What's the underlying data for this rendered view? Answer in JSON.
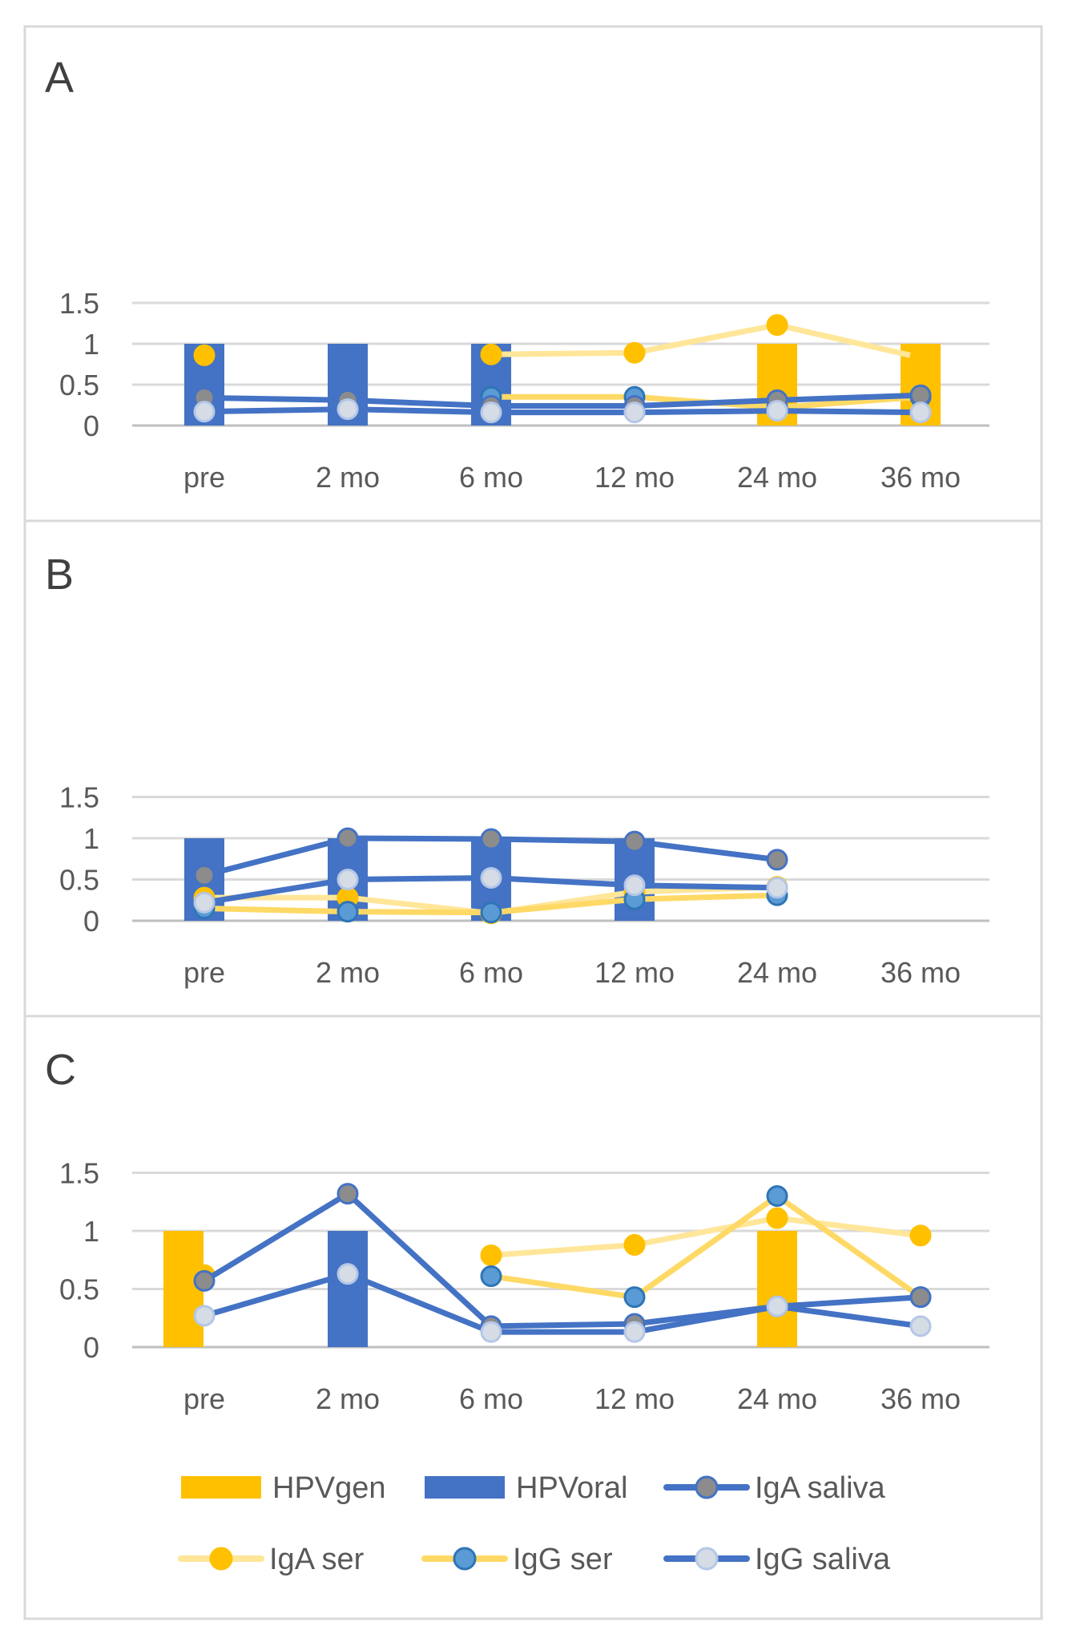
{
  "figure": {
    "legend": [
      {
        "key": "hpv_gen",
        "label": "HPVgen",
        "kind": "bar",
        "color": "#FFC000"
      },
      {
        "key": "hpv_oral",
        "label": "HPVoral",
        "kind": "bar",
        "color": "#4472C4"
      },
      {
        "key": "iga_saliva",
        "label": "IgA saliva",
        "kind": "line",
        "line_color": "#4472C4",
        "marker_fill": "#8C8C8C",
        "marker_stroke": "#4472C4"
      },
      {
        "key": "iga_ser",
        "label": "IgA ser",
        "kind": "line",
        "line_color": "#FFE699",
        "marker_fill": "#FFC000",
        "marker_stroke": "#FFC000"
      },
      {
        "key": "igg_ser",
        "label": "IgG ser",
        "kind": "line",
        "line_color": "#FFD966",
        "marker_fill": "#5B9BD5",
        "marker_stroke": "#2E75B6"
      },
      {
        "key": "igg_saliva",
        "label": "IgG saliva",
        "kind": "line",
        "line_color": "#4472C4",
        "marker_fill": "#D6DCE5",
        "marker_stroke": "#B4C7E7"
      }
    ]
  },
  "chart_data": [
    {
      "panel": "A",
      "type": "bar+line",
      "categories": [
        "pre",
        "2 mo",
        "6 mo",
        "12 mo",
        "24 mo",
        "36 mo"
      ],
      "y_ticks": [
        "1.5",
        "1",
        "0.5",
        "0"
      ],
      "ylim": [
        0,
        1.5
      ],
      "grid": true,
      "bars": {
        "hpv_gen": [
          0,
          0,
          0,
          0,
          1,
          1
        ],
        "hpv_oral": [
          1,
          1,
          1,
          0,
          0,
          0
        ]
      },
      "series": [
        {
          "key": "iga_ser",
          "name": "IgA ser",
          "values": [
            0.86,
            null,
            0.87,
            0.89,
            1.23,
            0.83
          ]
        },
        {
          "key": "igg_ser",
          "name": "IgG ser",
          "values": [
            null,
            null,
            0.35,
            0.35,
            0.22,
            0.35
          ]
        },
        {
          "key": "iga_saliva",
          "name": "IgA saliva",
          "values": [
            0.34,
            0.31,
            0.24,
            0.24,
            0.31,
            0.37
          ]
        },
        {
          "key": "igg_saliva",
          "name": "IgG saliva",
          "values": [
            0.17,
            0.2,
            0.16,
            0.16,
            0.18,
            0.16
          ]
        }
      ]
    },
    {
      "panel": "B",
      "type": "bar+line",
      "categories": [
        "pre",
        "2 mo",
        "6 mo",
        "12 mo",
        "24 mo",
        "36 mo"
      ],
      "y_ticks": [
        "1.5",
        "1",
        "0.5",
        "0"
      ],
      "ylim": [
        0,
        1.5
      ],
      "grid": true,
      "bars": {
        "hpv_gen": [
          0,
          0,
          0,
          0,
          0,
          0
        ],
        "hpv_oral": [
          1,
          1,
          1,
          1,
          0,
          0
        ]
      },
      "series": [
        {
          "key": "iga_ser",
          "name": "IgA ser",
          "values": [
            0.28,
            0.28,
            0.09,
            0.35,
            0.41,
            null
          ]
        },
        {
          "key": "igg_ser",
          "name": "IgG ser",
          "values": [
            0.15,
            0.11,
            0.1,
            0.26,
            0.31,
            null
          ]
        },
        {
          "key": "iga_saliva",
          "name": "IgA saliva",
          "values": [
            0.55,
            1.0,
            0.99,
            0.96,
            0.74,
            null
          ]
        },
        {
          "key": "igg_saliva",
          "name": "IgG saliva",
          "values": [
            0.22,
            0.5,
            0.52,
            0.43,
            0.4,
            null
          ]
        }
      ]
    },
    {
      "panel": "C",
      "type": "bar+line",
      "categories": [
        "pre",
        "2 mo",
        "6 mo",
        "12 mo",
        "24 mo",
        "36 mo"
      ],
      "y_ticks": [
        "1.5",
        "1",
        "0.5",
        "0"
      ],
      "ylim": [
        0,
        1.5
      ],
      "grid": true,
      "bars": {
        "hpv_gen": [
          1,
          0,
          0,
          0,
          1,
          0
        ],
        "hpv_oral": [
          0,
          1,
          0,
          0,
          0,
          0
        ]
      },
      "series": [
        {
          "key": "iga_ser",
          "name": "IgA ser",
          "values": [
            0.62,
            null,
            0.79,
            0.88,
            1.11,
            0.96
          ]
        },
        {
          "key": "igg_ser",
          "name": "IgG ser",
          "values": [
            null,
            null,
            0.61,
            0.43,
            1.3,
            0.43
          ]
        },
        {
          "key": "iga_saliva",
          "name": "IgA saliva",
          "values": [
            0.57,
            1.32,
            0.18,
            0.2,
            0.35,
            0.43
          ]
        },
        {
          "key": "igg_saliva",
          "name": "IgG saliva",
          "values": [
            0.27,
            0.63,
            0.13,
            0.13,
            0.35,
            0.18
          ]
        }
      ]
    }
  ]
}
